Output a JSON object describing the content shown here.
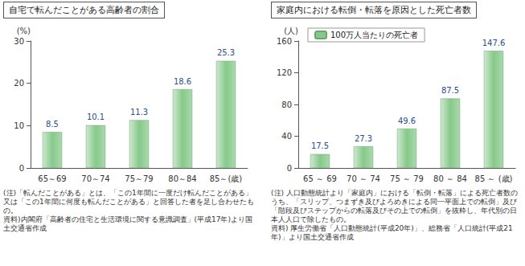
{
  "chart_data": [
    {
      "type": "bar",
      "title": "自宅で転んだことがある高齢者の割合",
      "ylabel": "(%)",
      "categories": [
        "65～69",
        "70～74",
        "75～79",
        "80～84",
        "85～(歳)"
      ],
      "values": [
        8.5,
        10.1,
        11.3,
        18.6,
        25.3
      ],
      "color": "#86c98a",
      "ylim": [
        0,
        30
      ],
      "yticks": [
        0,
        10,
        20,
        30
      ],
      "grid": false,
      "data_labels": true,
      "annotations": [
        "(注)「転んだことがある」とは、「この1年間に一度だけ転んだことがある」又は「この1年間に何度も転んだことがある」と回答した者を足し合わせたもの。",
        "資料)内閣府「高齢者の住宅と生活環境に関する意識調査」(平成17年)より国土交通省作成"
      ]
    },
    {
      "type": "bar",
      "title": "家庭内における転倒・転落を原因とした死亡者数",
      "ylabel": "(人)",
      "categories": [
        "65 ～ 69",
        "70 ～ 74",
        "75 ～ 79",
        "80 ～ 84",
        "85 ～ (歳)"
      ],
      "series": [
        {
          "name": "100万人当たりの死亡者",
          "color": "#86c98a",
          "values": [
            17.5,
            27.3,
            49.6,
            87.5,
            147.6
          ]
        }
      ],
      "ylim": [
        0,
        160
      ],
      "yticks": [
        0,
        40,
        80,
        120,
        160
      ],
      "grid": false,
      "data_labels": true,
      "legend": "top-left",
      "annotations": [
        "(注) 人口動態統計より「家庭内」における「転倒・転落」による死亡者数のうち、「スリップ、つまずき及びよろめきによる同一平面上での転倒」及び「階段及びステップからの転落及びその上での転倒」を抜粋し、年代別の日本人人口で除したもの。",
        "資料) 厚生労働省「人口動態統計(平成20年)」、総務省「人口統計(平成21年)」より国土交通省作成"
      ]
    }
  ]
}
